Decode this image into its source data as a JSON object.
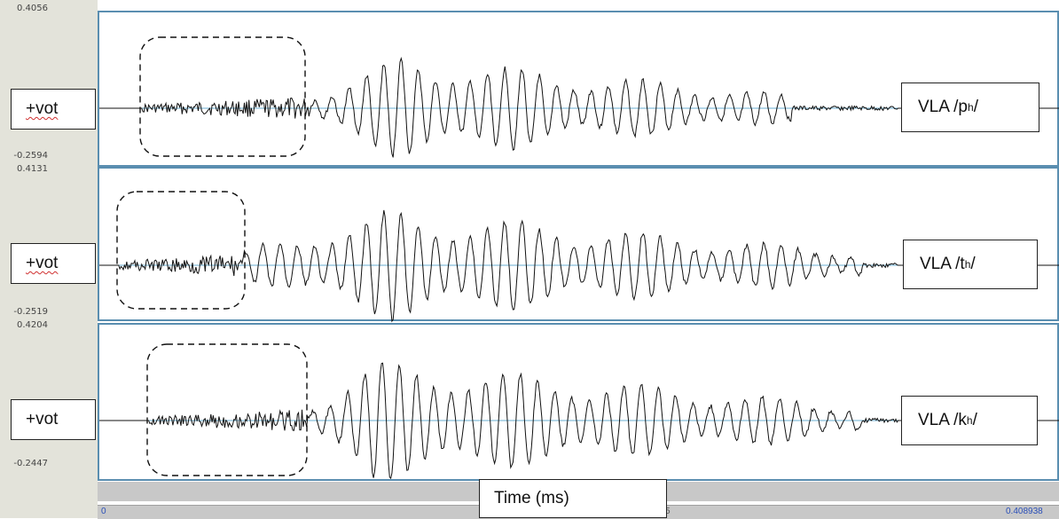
{
  "panels": [
    {
      "y_max": "0.4056",
      "y_min": "-0.2594",
      "left_label": "+vot",
      "right_label_prefix": "VLA /",
      "consonant": "p",
      "aspiration": "h",
      "right_label_suffix": "/"
    },
    {
      "y_max": "0.4131",
      "y_min": "-0.2519",
      "left_label": "+vot",
      "right_label_prefix": "VLA /",
      "consonant": "t",
      "aspiration": "h",
      "right_label_suffix": "/"
    },
    {
      "y_max": "0.4204",
      "y_min": "-0.2447",
      "left_label": "+vot",
      "right_label_prefix": "VLA /",
      "consonant": "k",
      "aspiration": "h",
      "right_label_suffix": "/"
    }
  ],
  "time_axis": {
    "start": "0",
    "end": "0.408938",
    "label": "Time (ms)",
    "mid_fragment": "5"
  },
  "colors": {
    "gutter": "#e3e3da",
    "panel_border": "#5a8eb0",
    "zero_line": "#6aaed0",
    "waveform_dark": "#111111",
    "waveform_light": "#777777",
    "axis_value_blue": "#2a4fb8"
  }
}
